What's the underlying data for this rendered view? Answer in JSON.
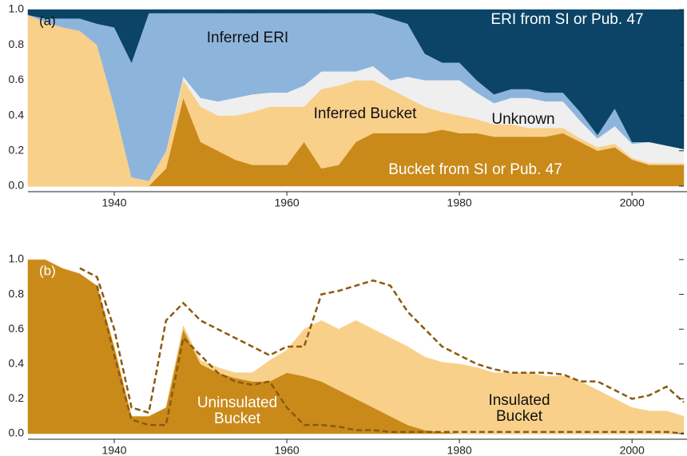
{
  "chart_data": [
    {
      "type": "area",
      "label": "(a)",
      "x": [
        1930,
        1932,
        1934,
        1936,
        1938,
        1940,
        1942,
        1944,
        1946,
        1948,
        1950,
        1952,
        1954,
        1956,
        1958,
        1960,
        1962,
        1964,
        1966,
        1968,
        1970,
        1972,
        1974,
        1976,
        1978,
        1980,
        1982,
        1984,
        1986,
        1988,
        1990,
        1992,
        1994,
        1996,
        1998,
        2000,
        2002,
        2004,
        2006
      ],
      "xlim": [
        1930,
        2006
      ],
      "ylim": [
        0,
        1
      ],
      "xticks": [
        1940,
        1960,
        1980,
        2000
      ],
      "yticks": [
        {
          "value": 0,
          "label": "0.0"
        },
        0.2,
        0.4,
        0.6,
        0.8,
        {
          "value": 1,
          "label": "1.0"
        }
      ],
      "series": [
        {
          "name": "Bucket from SI or Pub. 47",
          "color": "#c98a1a",
          "values": [
            0,
            0,
            0,
            0,
            0,
            0,
            0,
            0,
            0.1,
            0.5,
            0.25,
            0.2,
            0.15,
            0.12,
            0.12,
            0.12,
            0.25,
            0.1,
            0.12,
            0.25,
            0.3,
            0.3,
            0.3,
            0.3,
            0.32,
            0.3,
            0.3,
            0.28,
            0.28,
            0.28,
            0.28,
            0.3,
            0.25,
            0.2,
            0.22,
            0.15,
            0.12,
            0.12,
            0.12
          ]
        },
        {
          "name": "Inferred Bucket",
          "color": "#f9d08a",
          "values": [
            0.97,
            0.93,
            0.9,
            0.88,
            0.8,
            0.45,
            0.05,
            0.03,
            0.1,
            0.1,
            0.2,
            0.2,
            0.25,
            0.3,
            0.33,
            0.33,
            0.2,
            0.45,
            0.45,
            0.35,
            0.3,
            0.25,
            0.2,
            0.15,
            0.1,
            0.1,
            0.08,
            0.07,
            0.07,
            0.05,
            0.05,
            0.03,
            0.02,
            0.02,
            0.02,
            0.01,
            0.01,
            0.01,
            0.01
          ]
        },
        {
          "name": "Unknown",
          "color": "#efefef",
          "values": [
            0,
            0,
            0,
            0,
            0,
            0,
            0,
            0,
            0,
            0.02,
            0.05,
            0.08,
            0.1,
            0.1,
            0.08,
            0.08,
            0.12,
            0.1,
            0.08,
            0.05,
            0.08,
            0.05,
            0.12,
            0.15,
            0.18,
            0.2,
            0.15,
            0.12,
            0.15,
            0.17,
            0.15,
            0.15,
            0.1,
            0.05,
            0.1,
            0.08,
            0.12,
            0.1,
            0.08
          ]
        },
        {
          "name": "Inferred ERI",
          "color": "#8db5dc",
          "values": [
            0,
            0.02,
            0.05,
            0.07,
            0.12,
            0.45,
            0.65,
            0.95,
            0.78,
            0.36,
            0.48,
            0.5,
            0.48,
            0.46,
            0.45,
            0.45,
            0.41,
            0.33,
            0.33,
            0.33,
            0.3,
            0.35,
            0.3,
            0.15,
            0.1,
            0.1,
            0.07,
            0.05,
            0.05,
            0.05,
            0.05,
            0.05,
            0.05,
            0.02,
            0.1,
            0.01,
            0,
            0,
            0
          ]
        },
        {
          "name": "ERI from SI or Pub. 47",
          "color": "#0b4466",
          "values": [
            0.03,
            0.05,
            0.05,
            0.05,
            0.08,
            0.1,
            0.3,
            0.02,
            0.02,
            0.02,
            0.02,
            0.02,
            0.02,
            0.02,
            0.02,
            0.02,
            0.02,
            0.02,
            0.02,
            0.02,
            0.02,
            0.05,
            0.08,
            0.25,
            0.3,
            0.3,
            0.4,
            0.48,
            0.45,
            0.45,
            0.47,
            0.47,
            0.58,
            0.71,
            0.56,
            0.75,
            0.75,
            0.77,
            0.79
          ]
        }
      ]
    },
    {
      "type": "area",
      "label": "(b)",
      "x": [
        1930,
        1932,
        1934,
        1936,
        1938,
        1940,
        1942,
        1944,
        1946,
        1948,
        1950,
        1952,
        1954,
        1956,
        1958,
        1960,
        1962,
        1964,
        1966,
        1968,
        1970,
        1972,
        1974,
        1976,
        1978,
        1980,
        1982,
        1984,
        1986,
        1988,
        1990,
        1992,
        1994,
        1996,
        1998,
        2000,
        2002,
        2004,
        2006
      ],
      "xlim": [
        1930,
        2006
      ],
      "ylim": [
        0,
        1
      ],
      "xticks": [
        1940,
        1960,
        1980,
        2000
      ],
      "yticks": [
        {
          "value": 0,
          "label": "0.0"
        },
        0.2,
        0.4,
        0.6,
        0.8,
        {
          "value": 1,
          "label": "1.0"
        }
      ],
      "series": [
        {
          "name": "Uninsulated Bucket",
          "color": "#c98a1a",
          "values": [
            1,
            1,
            0.95,
            0.92,
            0.85,
            0.5,
            0.1,
            0.1,
            0.15,
            0.6,
            0.4,
            0.35,
            0.32,
            0.3,
            0.3,
            0.35,
            0.33,
            0.3,
            0.25,
            0.2,
            0.15,
            0.1,
            0.05,
            0.02,
            0.01,
            0,
            0,
            0,
            0,
            0,
            0,
            0,
            0,
            0,
            0,
            0,
            0,
            0,
            0
          ]
        },
        {
          "name": "Insulated Bucket",
          "color": "#f9d08a",
          "values": [
            0,
            0,
            0,
            0,
            0,
            0,
            0,
            0,
            0,
            0.02,
            0.02,
            0.03,
            0.03,
            0.05,
            0.12,
            0.13,
            0.27,
            0.35,
            0.35,
            0.45,
            0.45,
            0.45,
            0.45,
            0.42,
            0.4,
            0.4,
            0.38,
            0.35,
            0.35,
            0.35,
            0.33,
            0.33,
            0.3,
            0.25,
            0.2,
            0.15,
            0.13,
            0.13,
            0.1
          ]
        },
        {
          "type": "line",
          "color": "#8a5a10",
          "values": [
            null,
            null,
            null,
            0.95,
            0.9,
            0.6,
            0.15,
            0.12,
            0.65,
            0.75,
            0.65,
            0.6,
            0.55,
            0.5,
            0.45,
            0.5,
            0.5,
            0.8,
            0.82,
            0.85,
            0.88,
            0.85,
            0.7,
            0.6,
            0.5,
            0.45,
            0.4,
            0.37,
            0.35,
            0.35,
            0.35,
            0.34,
            0.3,
            0.3,
            0.25,
            0.2,
            0.22,
            0.27,
            0.18
          ]
        },
        {
          "type": "line",
          "color": "#8a5a10",
          "values": [
            null,
            null,
            null,
            null,
            0.85,
            0.45,
            0.08,
            0.05,
            0.05,
            0.55,
            0.45,
            0.35,
            0.3,
            0.28,
            0.3,
            0.15,
            0.05,
            0.05,
            0.04,
            0.02,
            0.02,
            0.01,
            0.01,
            0.01,
            0.01,
            0.01,
            0.01,
            0.01,
            0.01,
            0.01,
            0.01,
            0.01,
            0.01,
            0.01,
            0.01,
            0.01,
            0.01,
            0.01,
            0
          ]
        }
      ]
    }
  ]
}
